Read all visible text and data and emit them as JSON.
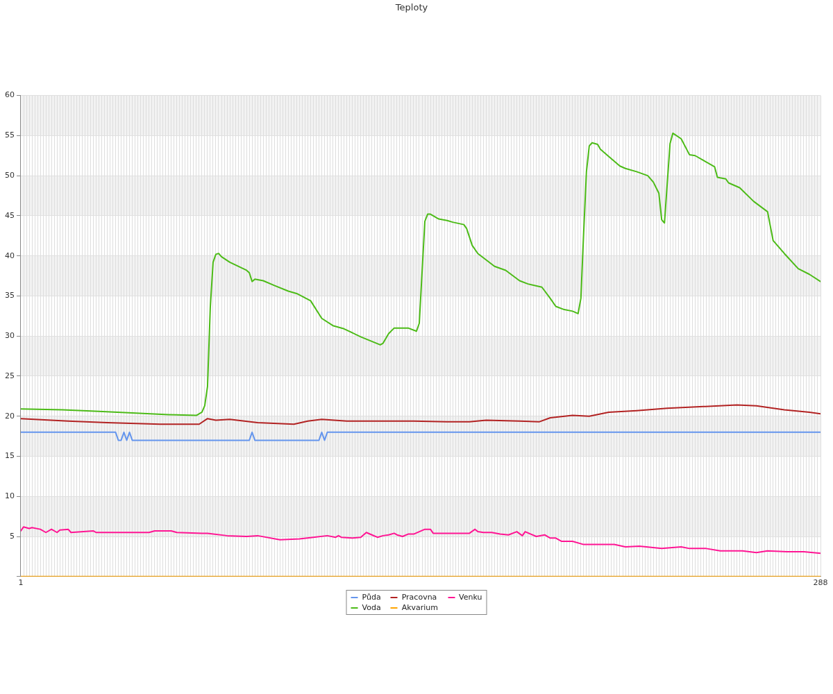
{
  "chart_data": {
    "type": "line",
    "title": "Teploty",
    "xlim": [
      1,
      288
    ],
    "xticks": [
      1,
      {
        "value": 2,
        "label": null
      },
      {
        "value": 3,
        "label": null
      },
      {
        "value": 4,
        "label": null
      },
      {
        "value": 5,
        "label": null
      },
      {
        "value": 6,
        "label": null
      },
      {
        "value": 7,
        "label": null
      },
      {
        "value": 8,
        "label": null
      },
      {
        "value": 9,
        "label": null
      },
      {
        "value": 10,
        "label": null
      },
      {
        "value": 11,
        "label": null
      },
      {
        "value": 12,
        "label": null
      },
      {
        "value": 13,
        "label": null
      },
      {
        "value": 14,
        "label": null
      },
      {
        "value": 15,
        "label": null
      },
      {
        "value": 16,
        "label": null
      },
      {
        "value": 17,
        "label": null
      },
      {
        "value": 18,
        "label": null
      },
      {
        "value": 19,
        "label": null
      },
      {
        "value": 20,
        "label": null
      },
      {
        "value": 21,
        "label": null
      },
      {
        "value": 22,
        "label": null
      },
      {
        "value": 23,
        "label": null
      },
      {
        "value": 24,
        "label": null
      },
      {
        "value": 25,
        "label": null
      },
      {
        "value": 26,
        "label": null
      },
      {
        "value": 27,
        "label": null
      },
      {
        "value": 28,
        "label": null
      },
      {
        "value": 29,
        "label": null
      },
      {
        "value": 30,
        "label": null
      },
      {
        "value": 31,
        "label": null
      },
      {
        "value": 32,
        "label": null
      },
      {
        "value": 33,
        "label": null
      },
      {
        "value": 34,
        "label": null
      },
      {
        "value": 35,
        "label": null
      },
      {
        "value": 36,
        "label": null
      },
      {
        "value": 37,
        "label": null
      },
      {
        "value": 38,
        "label": null
      },
      {
        "value": 39,
        "label": null
      },
      {
        "value": 40,
        "label": null
      },
      {
        "value": 41,
        "label": null
      },
      {
        "value": 42,
        "label": null
      },
      {
        "value": 43,
        "label": null
      },
      {
        "value": 44,
        "label": null
      },
      {
        "value": 45,
        "label": null
      },
      {
        "value": 46,
        "label": null
      },
      {
        "value": 47,
        "label": null
      },
      {
        "value": 48,
        "label": null
      },
      {
        "value": 49,
        "label": null
      },
      {
        "value": 50,
        "label": null
      },
      {
        "value": 51,
        "label": null
      },
      {
        "value": 52,
        "label": null
      },
      {
        "value": 53,
        "label": null
      },
      {
        "value": 54,
        "label": null
      },
      {
        "value": 55,
        "label": null
      },
      {
        "value": 56,
        "label": null
      },
      {
        "value": 57,
        "label": null
      },
      {
        "value": 58,
        "label": null
      },
      {
        "value": 59,
        "label": null
      },
      {
        "value": 60,
        "label": null
      },
      {
        "value": 61,
        "label": null
      },
      {
        "value": 62,
        "label": null
      },
      {
        "value": 63,
        "label": null
      },
      {
        "value": 64,
        "label": null
      },
      {
        "value": 65,
        "label": null
      },
      {
        "value": 66,
        "label": null
      },
      {
        "value": 67,
        "label": null
      },
      {
        "value": 68,
        "label": null
      },
      {
        "value": 69,
        "label": null
      },
      {
        "value": 70,
        "label": null
      },
      {
        "value": 71,
        "label": null
      },
      {
        "value": 72,
        "label": null
      },
      {
        "value": 73,
        "label": null
      },
      {
        "value": 74,
        "label": null
      },
      {
        "value": 75,
        "label": null
      },
      {
        "value": 76,
        "label": null
      },
      {
        "value": 77,
        "label": null
      },
      {
        "value": 78,
        "label": null
      },
      {
        "value": 79,
        "label": null
      },
      {
        "value": 80,
        "label": null
      },
      {
        "value": 81,
        "label": null
      },
      {
        "value": 82,
        "label": null
      },
      {
        "value": 83,
        "label": null
      },
      {
        "value": 84,
        "label": null
      },
      {
        "value": 85,
        "label": null
      },
      {
        "value": 86,
        "label": null
      },
      {
        "value": 87,
        "label": null
      },
      {
        "value": 88,
        "label": null
      },
      {
        "value": 89,
        "label": null
      },
      {
        "value": 90,
        "label": null
      },
      {
        "value": 91,
        "label": null
      },
      {
        "value": 92,
        "label": null
      },
      {
        "value": 93,
        "label": null
      },
      {
        "value": 94,
        "label": null
      },
      {
        "value": 95,
        "label": null
      },
      {
        "value": 96,
        "label": null
      },
      {
        "value": 97,
        "label": null
      },
      {
        "value": 98,
        "label": null
      },
      {
        "value": 99,
        "label": null
      },
      {
        "value": 100,
        "label": null
      },
      {
        "value": 101,
        "label": null
      },
      {
        "value": 102,
        "label": null
      },
      {
        "value": 103,
        "label": null
      },
      {
        "value": 104,
        "label": null
      },
      {
        "value": 105,
        "label": null
      },
      {
        "value": 106,
        "label": null
      },
      {
        "value": 107,
        "label": null
      },
      {
        "value": 108,
        "label": null
      },
      {
        "value": 109,
        "label": null
      },
      {
        "value": 110,
        "label": null
      },
      {
        "value": 111,
        "label": null
      },
      {
        "value": 112,
        "label": null
      },
      {
        "value": 113,
        "label": null
      },
      {
        "value": 114,
        "label": null
      },
      {
        "value": 115,
        "label": null
      },
      {
        "value": 116,
        "label": null
      },
      {
        "value": 117,
        "label": null
      },
      {
        "value": 118,
        "label": null
      },
      {
        "value": 119,
        "label": null
      },
      {
        "value": 120,
        "label": null
      },
      {
        "value": 121,
        "label": null
      },
      {
        "value": 122,
        "label": null
      },
      {
        "value": 123,
        "label": null
      },
      {
        "value": 124,
        "label": null
      },
      {
        "value": 125,
        "label": null
      },
      {
        "value": 126,
        "label": null
      },
      {
        "value": 127,
        "label": null
      },
      {
        "value": 128,
        "label": null
      },
      {
        "value": 129,
        "label": null
      },
      {
        "value": 130,
        "label": null
      },
      {
        "value": 131,
        "label": null
      },
      {
        "value": 132,
        "label": null
      },
      {
        "value": 133,
        "label": null
      },
      {
        "value": 134,
        "label": null
      },
      {
        "value": 135,
        "label": null
      },
      {
        "value": 136,
        "label": null
      },
      {
        "value": 137,
        "label": null
      },
      {
        "value": 138,
        "label": null
      },
      {
        "value": 139,
        "label": null
      },
      {
        "value": 140,
        "label": null
      },
      {
        "value": 141,
        "label": null
      },
      {
        "value": 142,
        "label": null
      },
      {
        "value": 143,
        "label": null
      },
      {
        "value": 144,
        "label": null
      },
      {
        "value": 145,
        "label": null
      },
      {
        "value": 146,
        "label": null
      },
      {
        "value": 147,
        "label": null
      },
      {
        "value": 148,
        "label": null
      },
      {
        "value": 149,
        "label": null
      },
      {
        "value": 150,
        "label": null
      },
      {
        "value": 151,
        "label": null
      },
      {
        "value": 152,
        "label": null
      },
      {
        "value": 153,
        "label": null
      },
      {
        "value": 154,
        "label": null
      },
      {
        "value": 155,
        "label": null
      },
      {
        "value": 156,
        "label": null
      },
      {
        "value": 157,
        "label": null
      },
      {
        "value": 158,
        "label": null
      },
      {
        "value": 159,
        "label": null
      },
      {
        "value": 160,
        "label": null
      },
      {
        "value": 161,
        "label": null
      },
      {
        "value": 162,
        "label": null
      },
      {
        "value": 163,
        "label": null
      },
      {
        "value": 164,
        "label": null
      },
      {
        "value": 165,
        "label": null
      },
      {
        "value": 166,
        "label": null
      },
      {
        "value": 167,
        "label": null
      },
      {
        "value": 168,
        "label": null
      },
      {
        "value": 169,
        "label": null
      },
      {
        "value": 170,
        "label": null
      },
      {
        "value": 171,
        "label": null
      },
      {
        "value": 172,
        "label": null
      },
      {
        "value": 173,
        "label": null
      },
      {
        "value": 174,
        "label": null
      },
      {
        "value": 175,
        "label": null
      },
      {
        "value": 176,
        "label": null
      },
      {
        "value": 177,
        "label": null
      },
      {
        "value": 178,
        "label": null
      },
      {
        "value": 179,
        "label": null
      },
      {
        "value": 180,
        "label": null
      },
      {
        "value": 181,
        "label": null
      },
      {
        "value": 182,
        "label": null
      },
      {
        "value": 183,
        "label": null
      },
      {
        "value": 184,
        "label": null
      },
      {
        "value": 185,
        "label": null
      },
      {
        "value": 186,
        "label": null
      },
      {
        "value": 187,
        "label": null
      },
      {
        "value": 188,
        "label": null
      },
      {
        "value": 189,
        "label": null
      },
      {
        "value": 190,
        "label": null
      },
      {
        "value": 191,
        "label": null
      },
      {
        "value": 192,
        "label": null
      },
      {
        "value": 193,
        "label": null
      },
      {
        "value": 194,
        "label": null
      },
      {
        "value": 195,
        "label": null
      },
      {
        "value": 196,
        "label": null
      },
      {
        "value": 197,
        "label": null
      },
      {
        "value": 198,
        "label": null
      },
      {
        "value": 199,
        "label": null
      },
      {
        "value": 200,
        "label": null
      },
      {
        "value": 201,
        "label": null
      },
      {
        "value": 202,
        "label": null
      },
      {
        "value": 203,
        "label": null
      },
      {
        "value": 204,
        "label": null
      },
      {
        "value": 205,
        "label": null
      },
      {
        "value": 206,
        "label": null
      },
      {
        "value": 207,
        "label": null
      },
      {
        "value": 208,
        "label": null
      },
      {
        "value": 209,
        "label": null
      },
      {
        "value": 210,
        "label": null
      },
      {
        "value": 211,
        "label": null
      },
      {
        "value": 212,
        "label": null
      },
      {
        "value": 213,
        "label": null
      },
      {
        "value": 214,
        "label": null
      },
      {
        "value": 215,
        "label": null
      },
      {
        "value": 216,
        "label": null
      },
      {
        "value": 217,
        "label": null
      },
      {
        "value": 218,
        "label": null
      },
      {
        "value": 219,
        "label": null
      },
      {
        "value": 220,
        "label": null
      },
      {
        "value": 221,
        "label": null
      },
      {
        "value": 222,
        "label": null
      },
      {
        "value": 223,
        "label": null
      },
      {
        "value": 224,
        "label": null
      },
      {
        "value": 225,
        "label": null
      },
      {
        "value": 226,
        "label": null
      },
      {
        "value": 227,
        "label": null
      },
      {
        "value": 228,
        "label": null
      },
      {
        "value": 229,
        "label": null
      },
      {
        "value": 230,
        "label": null
      },
      {
        "value": 231,
        "label": null
      },
      {
        "value": 232,
        "label": null
      },
      {
        "value": 233,
        "label": null
      },
      {
        "value": 234,
        "label": null
      },
      {
        "value": 235,
        "label": null
      },
      {
        "value": 236,
        "label": null
      },
      {
        "value": 237,
        "label": null
      },
      {
        "value": 238,
        "label": null
      },
      {
        "value": 239,
        "label": null
      },
      {
        "value": 240,
        "label": null
      },
      {
        "value": 241,
        "label": null
      },
      {
        "value": 242,
        "label": null
      },
      {
        "value": 243,
        "label": null
      },
      {
        "value": 244,
        "label": null
      },
      {
        "value": 245,
        "label": null
      },
      {
        "value": 246,
        "label": null
      },
      {
        "value": 247,
        "label": null
      },
      {
        "value": 248,
        "label": null
      },
      {
        "value": 249,
        "label": null
      },
      {
        "value": 250,
        "label": null
      },
      {
        "value": 251,
        "label": null
      },
      {
        "value": 252,
        "label": null
      },
      {
        "value": 253,
        "label": null
      },
      {
        "value": 254,
        "label": null
      },
      {
        "value": 255,
        "label": null
      },
      {
        "value": 256,
        "label": null
      },
      {
        "value": 257,
        "label": null
      },
      {
        "value": 258,
        "label": null
      },
      {
        "value": 259,
        "label": null
      },
      {
        "value": 260,
        "label": null
      },
      {
        "value": 261,
        "label": null
      },
      {
        "value": 262,
        "label": null
      },
      {
        "value": 263,
        "label": null
      },
      {
        "value": 264,
        "label": null
      },
      {
        "value": 265,
        "label": null
      },
      {
        "value": 266,
        "label": null
      },
      {
        "value": 267,
        "label": null
      },
      {
        "value": 268,
        "label": null
      },
      {
        "value": 269,
        "label": null
      },
      {
        "value": 270,
        "label": null
      },
      {
        "value": 271,
        "label": null
      },
      {
        "value": 272,
        "label": null
      },
      {
        "value": 273,
        "label": null
      },
      {
        "value": 274,
        "label": null
      },
      {
        "value": 275,
        "label": null
      },
      {
        "value": 276,
        "label": null
      },
      {
        "value": 277,
        "label": null
      },
      {
        "value": 278,
        "label": null
      },
      {
        "value": 279,
        "label": null
      },
      {
        "value": 280,
        "label": null
      },
      {
        "value": 281,
        "label": null
      },
      {
        "value": 282,
        "label": null
      },
      {
        "value": 283,
        "label": null
      },
      {
        "value": 284,
        "label": null
      },
      {
        "value": 285,
        "label": null
      },
      {
        "value": 286,
        "label": null
      },
      {
        "value": 287,
        "label": null
      },
      288
    ],
    "ylim": [
      0,
      60
    ],
    "yticks": [
      {
        "value": 0,
        "label": null
      },
      5,
      10,
      15,
      20,
      25,
      30,
      35,
      40,
      45,
      50,
      55,
      60
    ],
    "grid": true,
    "legend": "bottom",
    "marker": "none",
    "line_style": "solid",
    "bands": [
      {
        "axis": "y",
        "from": 5,
        "to": 10,
        "color": "#f2f2f2"
      },
      {
        "axis": "y",
        "from": 15,
        "to": 20,
        "color": "#f2f2f2"
      },
      {
        "axis": "y",
        "from": 25,
        "to": 30,
        "color": "#f2f2f2"
      },
      {
        "axis": "y",
        "from": 35,
        "to": 40,
        "color": "#f2f2f2"
      },
      {
        "axis": "y",
        "from": 45,
        "to": 50,
        "color": "#f2f2f2"
      },
      {
        "axis": "y",
        "from": 55,
        "to": 60,
        "color": "#f2f2f2"
      }
    ],
    "series": [
      {
        "name": "Půda",
        "color": "#6495ed",
        "x": [
          1,
          35,
          36,
          37,
          38,
          39,
          40,
          41,
          83,
          84,
          85,
          108,
          109,
          110,
          111,
          288
        ],
        "values": [
          18,
          18,
          17,
          17,
          18,
          17,
          18,
          17,
          17,
          18,
          17,
          17,
          18,
          17,
          18,
          18
        ]
      },
      {
        "name": "Voda",
        "color": "#4cbb17",
        "x": [
          1,
          16,
          29,
          41,
          54,
          64,
          66,
          67,
          68,
          69,
          70,
          71,
          72,
          73,
          76,
          82,
          83,
          84,
          85,
          88,
          92,
          97,
          100,
          105,
          109,
          113,
          117,
          123,
          130,
          131,
          133,
          135,
          140,
          143,
          144,
          146,
          147,
          148,
          151,
          154,
          156,
          160,
          161,
          163,
          165,
          171,
          175,
          180,
          183,
          188,
          191,
          193,
          196,
          199,
          201,
          202,
          203,
          204,
          205,
          206,
          208,
          209,
          212,
          216,
          218,
          222,
          226,
          228,
          230,
          231,
          232,
          234,
          235,
          238,
          241,
          243,
          246,
          250,
          251,
          254,
          255,
          259,
          264,
          269,
          271,
          275,
          280,
          284,
          288
        ],
        "values": [
          20.9,
          20.8,
          20.6,
          20.4,
          20.2,
          20.1,
          20.5,
          21.3,
          23.7,
          33.6,
          39.2,
          40.2,
          40.3,
          39.9,
          39.2,
          38.2,
          37.9,
          36.8,
          37.1,
          36.9,
          36.3,
          35.6,
          35.3,
          34.4,
          32.2,
          31.3,
          30.9,
          29.9,
          28.9,
          29.1,
          30.3,
          31.0,
          31.0,
          30.6,
          31.6,
          44.3,
          45.2,
          45.2,
          44.6,
          44.4,
          44.2,
          43.9,
          43.4,
          41.3,
          40.3,
          38.7,
          38.2,
          36.9,
          36.5,
          36.1,
          34.7,
          33.7,
          33.3,
          33.1,
          32.8,
          34.7,
          42.9,
          50.5,
          53.7,
          54.1,
          53.9,
          53.3,
          52.4,
          51.2,
          50.9,
          50.5,
          50.0,
          49.2,
          47.8,
          44.5,
          44.1,
          54.0,
          55.3,
          54.6,
          52.6,
          52.5,
          51.9,
          51.1,
          49.8,
          49.6,
          49.1,
          48.5,
          46.8,
          45.5,
          41.9,
          40.3,
          38.4,
          37.7,
          36.8
        ]
      },
      {
        "name": "Pracovna",
        "color": "#b22222",
        "x": [
          1,
          18,
          32,
          51,
          65,
          68,
          71,
          76,
          86,
          99,
          104,
          109,
          118,
          142,
          154,
          162,
          168,
          180,
          187,
          191,
          199,
          205,
          212,
          222,
          233,
          246,
          258,
          265,
          275,
          284,
          288
        ],
        "values": [
          19.7,
          19.4,
          19.2,
          19.0,
          19.0,
          19.7,
          19.5,
          19.6,
          19.2,
          19.0,
          19.4,
          19.6,
          19.4,
          19.4,
          19.3,
          19.3,
          19.5,
          19.4,
          19.3,
          19.8,
          20.1,
          20.0,
          20.5,
          20.7,
          21.0,
          21.2,
          21.4,
          21.3,
          20.8,
          20.5,
          20.3
        ]
      },
      {
        "name": "Akvarium",
        "color": "#ffa500",
        "x": [
          1,
          288
        ],
        "values": [
          0,
          0
        ]
      },
      {
        "name": "Venku",
        "color": "#ff1493",
        "x": [
          1,
          2,
          4,
          5,
          8,
          10,
          12,
          14,
          15,
          18,
          19,
          27,
          28,
          38,
          47,
          49,
          55,
          57,
          66,
          68,
          75,
          82,
          86,
          94,
          101,
          106,
          111,
          114,
          115,
          116,
          120,
          123,
          125,
          127,
          129,
          131,
          133,
          135,
          136,
          138,
          140,
          142,
          144,
          146,
          148,
          149,
          162,
          164,
          165,
          167,
          170,
          173,
          176,
          179,
          181,
          182,
          186,
          189,
          191,
          193,
          195,
          199,
          203,
          206,
          210,
          214,
          218,
          223,
          231,
          238,
          241,
          247,
          252,
          260,
          265,
          269,
          276,
          282,
          288
        ],
        "values": [
          5.7,
          6.2,
          6.0,
          6.1,
          5.9,
          5.5,
          5.9,
          5.5,
          5.8,
          5.9,
          5.5,
          5.7,
          5.5,
          5.5,
          5.5,
          5.7,
          5.7,
          5.5,
          5.4,
          5.4,
          5.1,
          5.0,
          5.1,
          4.6,
          4.7,
          4.9,
          5.1,
          4.9,
          5.1,
          4.9,
          4.8,
          4.9,
          5.5,
          5.2,
          4.9,
          5.1,
          5.2,
          5.4,
          5.2,
          5.0,
          5.3,
          5.3,
          5.6,
          5.9,
          5.9,
          5.4,
          5.4,
          5.9,
          5.6,
          5.5,
          5.5,
          5.3,
          5.2,
          5.6,
          5.1,
          5.6,
          5.0,
          5.2,
          4.8,
          4.8,
          4.4,
          4.4,
          4.0,
          4.0,
          4.0,
          4.0,
          3.7,
          3.8,
          3.5,
          3.7,
          3.5,
          3.5,
          3.2,
          3.2,
          3.0,
          3.2,
          3.1,
          3.1,
          2.9
        ]
      }
    ]
  }
}
